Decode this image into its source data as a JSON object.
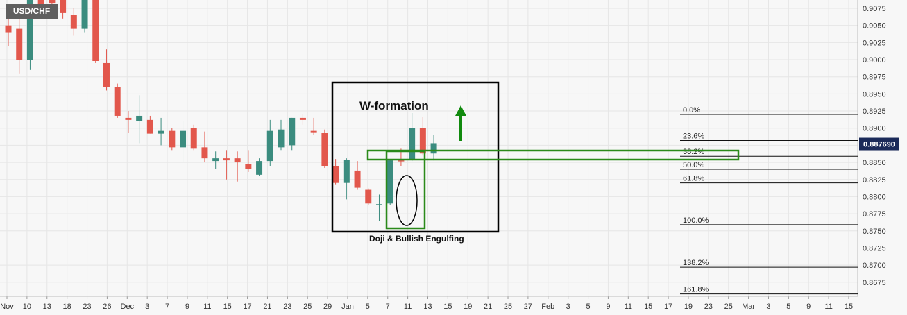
{
  "symbol": "USD/CHF",
  "current_price": "0.887690",
  "colors": {
    "up": "#3b8c7f",
    "down": "#e2574c",
    "current_line": "#1b2a59",
    "badge": "#1b2a59",
    "annotation_box": "#000000",
    "green_box": "#2b8a1a",
    "arrow": "#118a0e"
  },
  "chart_data": {
    "type": "candlestick",
    "title": "",
    "ylim": [
      0.8655,
      0.9092
    ],
    "yticks": [
      "0.9075",
      "0.9050",
      "0.9025",
      "0.9000",
      "0.8975",
      "0.8950",
      "0.8925",
      "0.8900",
      "0.8875",
      "0.8850",
      "0.8825",
      "0.8800",
      "0.8775",
      "0.8750",
      "0.8725",
      "0.8700",
      "0.8675"
    ],
    "xticks": [
      "Nov",
      "10",
      "13",
      "18",
      "23",
      "26",
      "Dec",
      "3",
      "7",
      "9",
      "11",
      "15",
      "17",
      "21",
      "23",
      "25",
      "29",
      "Jan",
      "5",
      "7",
      "11",
      "13",
      "15",
      "19",
      "21",
      "25",
      "27",
      "Feb",
      "3",
      "5",
      "9",
      "11",
      "15",
      "17",
      "19",
      "23",
      "25",
      "Mar",
      "3",
      "5",
      "9",
      "11",
      "15"
    ],
    "candles": [
      {
        "o": 0.905,
        "h": 0.9072,
        "l": 0.902,
        "c": 0.904
      },
      {
        "o": 0.9045,
        "h": 0.906,
        "l": 0.898,
        "c": 0.9
      },
      {
        "o": 0.9,
        "h": 0.91,
        "l": 0.8985,
        "c": 0.9095
      },
      {
        "o": 0.9095,
        "h": 0.91,
        "l": 0.908,
        "c": 0.908
      },
      {
        "o": 0.9095,
        "h": 0.91,
        "l": 0.9075,
        "c": 0.9082
      },
      {
        "o": 0.909,
        "h": 0.9095,
        "l": 0.906,
        "c": 0.9068
      },
      {
        "o": 0.9065,
        "h": 0.9075,
        "l": 0.9035,
        "c": 0.9045
      },
      {
        "o": 0.9045,
        "h": 0.91,
        "l": 0.904,
        "c": 0.9098
      },
      {
        "o": 0.91,
        "h": 0.91,
        "l": 0.8995,
        "c": 0.8998
      },
      {
        "o": 0.8995,
        "h": 0.9015,
        "l": 0.8955,
        "c": 0.896
      },
      {
        "o": 0.896,
        "h": 0.8965,
        "l": 0.8915,
        "c": 0.8918
      },
      {
        "o": 0.8915,
        "h": 0.8925,
        "l": 0.8893,
        "c": 0.8912
      },
      {
        "o": 0.891,
        "h": 0.8948,
        "l": 0.8878,
        "c": 0.8918
      },
      {
        "o": 0.8912,
        "h": 0.8918,
        "l": 0.8892,
        "c": 0.8892
      },
      {
        "o": 0.8892,
        "h": 0.8915,
        "l": 0.8875,
        "c": 0.8896
      },
      {
        "o": 0.8896,
        "h": 0.89,
        "l": 0.8868,
        "c": 0.8872
      },
      {
        "o": 0.8872,
        "h": 0.891,
        "l": 0.885,
        "c": 0.8896
      },
      {
        "o": 0.89,
        "h": 0.8905,
        "l": 0.8868,
        "c": 0.887
      },
      {
        "o": 0.8872,
        "h": 0.8895,
        "l": 0.885,
        "c": 0.8856
      },
      {
        "o": 0.8852,
        "h": 0.8866,
        "l": 0.884,
        "c": 0.8856
      },
      {
        "o": 0.8856,
        "h": 0.8868,
        "l": 0.8825,
        "c": 0.8853
      },
      {
        "o": 0.8856,
        "h": 0.8866,
        "l": 0.8822,
        "c": 0.885
      },
      {
        "o": 0.8848,
        "h": 0.8868,
        "l": 0.8836,
        "c": 0.884
      },
      {
        "o": 0.8832,
        "h": 0.8856,
        "l": 0.883,
        "c": 0.8852
      },
      {
        "o": 0.8852,
        "h": 0.8912,
        "l": 0.8845,
        "c": 0.8896
      },
      {
        "o": 0.8872,
        "h": 0.8912,
        "l": 0.8868,
        "c": 0.8898
      },
      {
        "o": 0.8875,
        "h": 0.8915,
        "l": 0.8868,
        "c": 0.8915
      },
      {
        "o": 0.8915,
        "h": 0.892,
        "l": 0.8905,
        "c": 0.8912
      },
      {
        "o": 0.8896,
        "h": 0.8915,
        "l": 0.889,
        "c": 0.8894
      },
      {
        "o": 0.8893,
        "h": 0.8898,
        "l": 0.8842,
        "c": 0.8845
      },
      {
        "o": 0.8845,
        "h": 0.8855,
        "l": 0.8818,
        "c": 0.882
      },
      {
        "o": 0.882,
        "h": 0.8856,
        "l": 0.8796,
        "c": 0.8854
      },
      {
        "o": 0.8838,
        "h": 0.8852,
        "l": 0.881,
        "c": 0.8813
      },
      {
        "o": 0.881,
        "h": 0.8812,
        "l": 0.8788,
        "c": 0.879
      },
      {
        "o": 0.8789,
        "h": 0.8803,
        "l": 0.8764,
        "c": 0.8789
      },
      {
        "o": 0.879,
        "h": 0.8855,
        "l": 0.8788,
        "c": 0.8853
      },
      {
        "o": 0.8853,
        "h": 0.887,
        "l": 0.8845,
        "c": 0.8852
      },
      {
        "o": 0.8855,
        "h": 0.8922,
        "l": 0.8852,
        "c": 0.89
      },
      {
        "o": 0.89,
        "h": 0.8917,
        "l": 0.886,
        "c": 0.8863
      },
      {
        "o": 0.8863,
        "h": 0.889,
        "l": 0.8853,
        "c": 0.8878
      }
    ],
    "fib_levels": [
      {
        "label": "0.0%",
        "value": 0.892
      },
      {
        "label": "23.6%",
        "value": 0.8882
      },
      {
        "label": "38.2%",
        "value": 0.8859
      },
      {
        "label": "50.0%",
        "value": 0.884
      },
      {
        "label": "61.8%",
        "value": 0.882
      },
      {
        "label": "100.0%",
        "value": 0.8759
      },
      {
        "label": "138.2%",
        "value": 0.8697
      },
      {
        "label": "161.8%",
        "value": 0.8658
      }
    ],
    "annotations": {
      "w_formation": "W-formation",
      "doji_engulfing": "Doji & Bullish Engulfing"
    }
  }
}
